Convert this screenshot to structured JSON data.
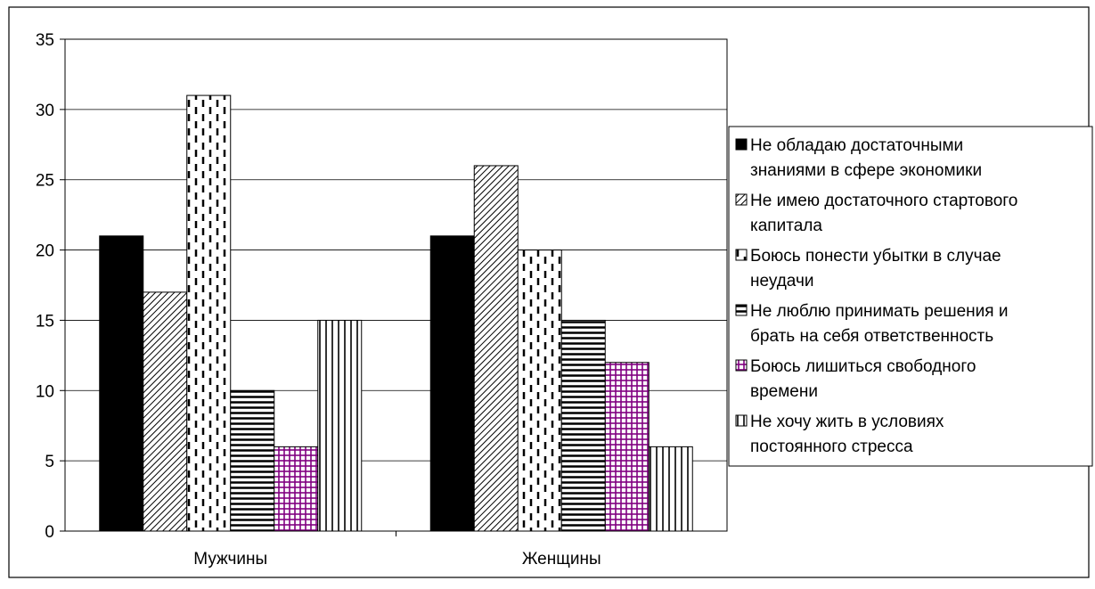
{
  "chart_data": {
    "type": "bar",
    "categories": [
      "Мужчины",
      "Женщины"
    ],
    "series": [
      {
        "name": "Не обладаю достаточными знаниями в сфере экономики",
        "legend_lines": [
          "Не обладаю достаточными",
          "знаниями в сфере экономики"
        ],
        "values": [
          21,
          21
        ],
        "pattern": "solid-black"
      },
      {
        "name": "Не имею достаточного стартового капитала",
        "legend_lines": [
          "Не имею достаточного стартового",
          "капитала"
        ],
        "values": [
          17,
          26
        ],
        "pattern": "diagonal-hatch"
      },
      {
        "name": "Боюсь понести убытки в случае неудачи",
        "legend_lines": [
          "Боюсь понести убытки в случае",
          "неудачи"
        ],
        "values": [
          31,
          20
        ],
        "pattern": "dashed-vertical"
      },
      {
        "name": "Не люблю принимать решения и брать на себя ответственность",
        "legend_lines": [
          "Не люблю принимать решения и",
          "брать на себя ответственность"
        ],
        "values": [
          10,
          15
        ],
        "pattern": "horizontal-lines"
      },
      {
        "name": "Боюсь лишиться свободного времени",
        "legend_lines": [
          "Боюсь лишиться свободного",
          "времени"
        ],
        "values": [
          6,
          12
        ],
        "pattern": "purple-grid"
      },
      {
        "name": "Не хочу жить в условиях постоянного стресса",
        "legend_lines": [
          "Не хочу жить в условиях",
          "постоянного стресса"
        ],
        "values": [
          15,
          6
        ],
        "pattern": "vertical-lines"
      }
    ],
    "y_ticks": [
      "0",
      "5",
      "10",
      "15",
      "20",
      "25",
      "30",
      "35"
    ],
    "ylim": [
      0,
      35
    ],
    "grid": true,
    "legend_position": "right",
    "colors": {
      "accent_purple": "#800080",
      "stroke": "#000000"
    }
  }
}
